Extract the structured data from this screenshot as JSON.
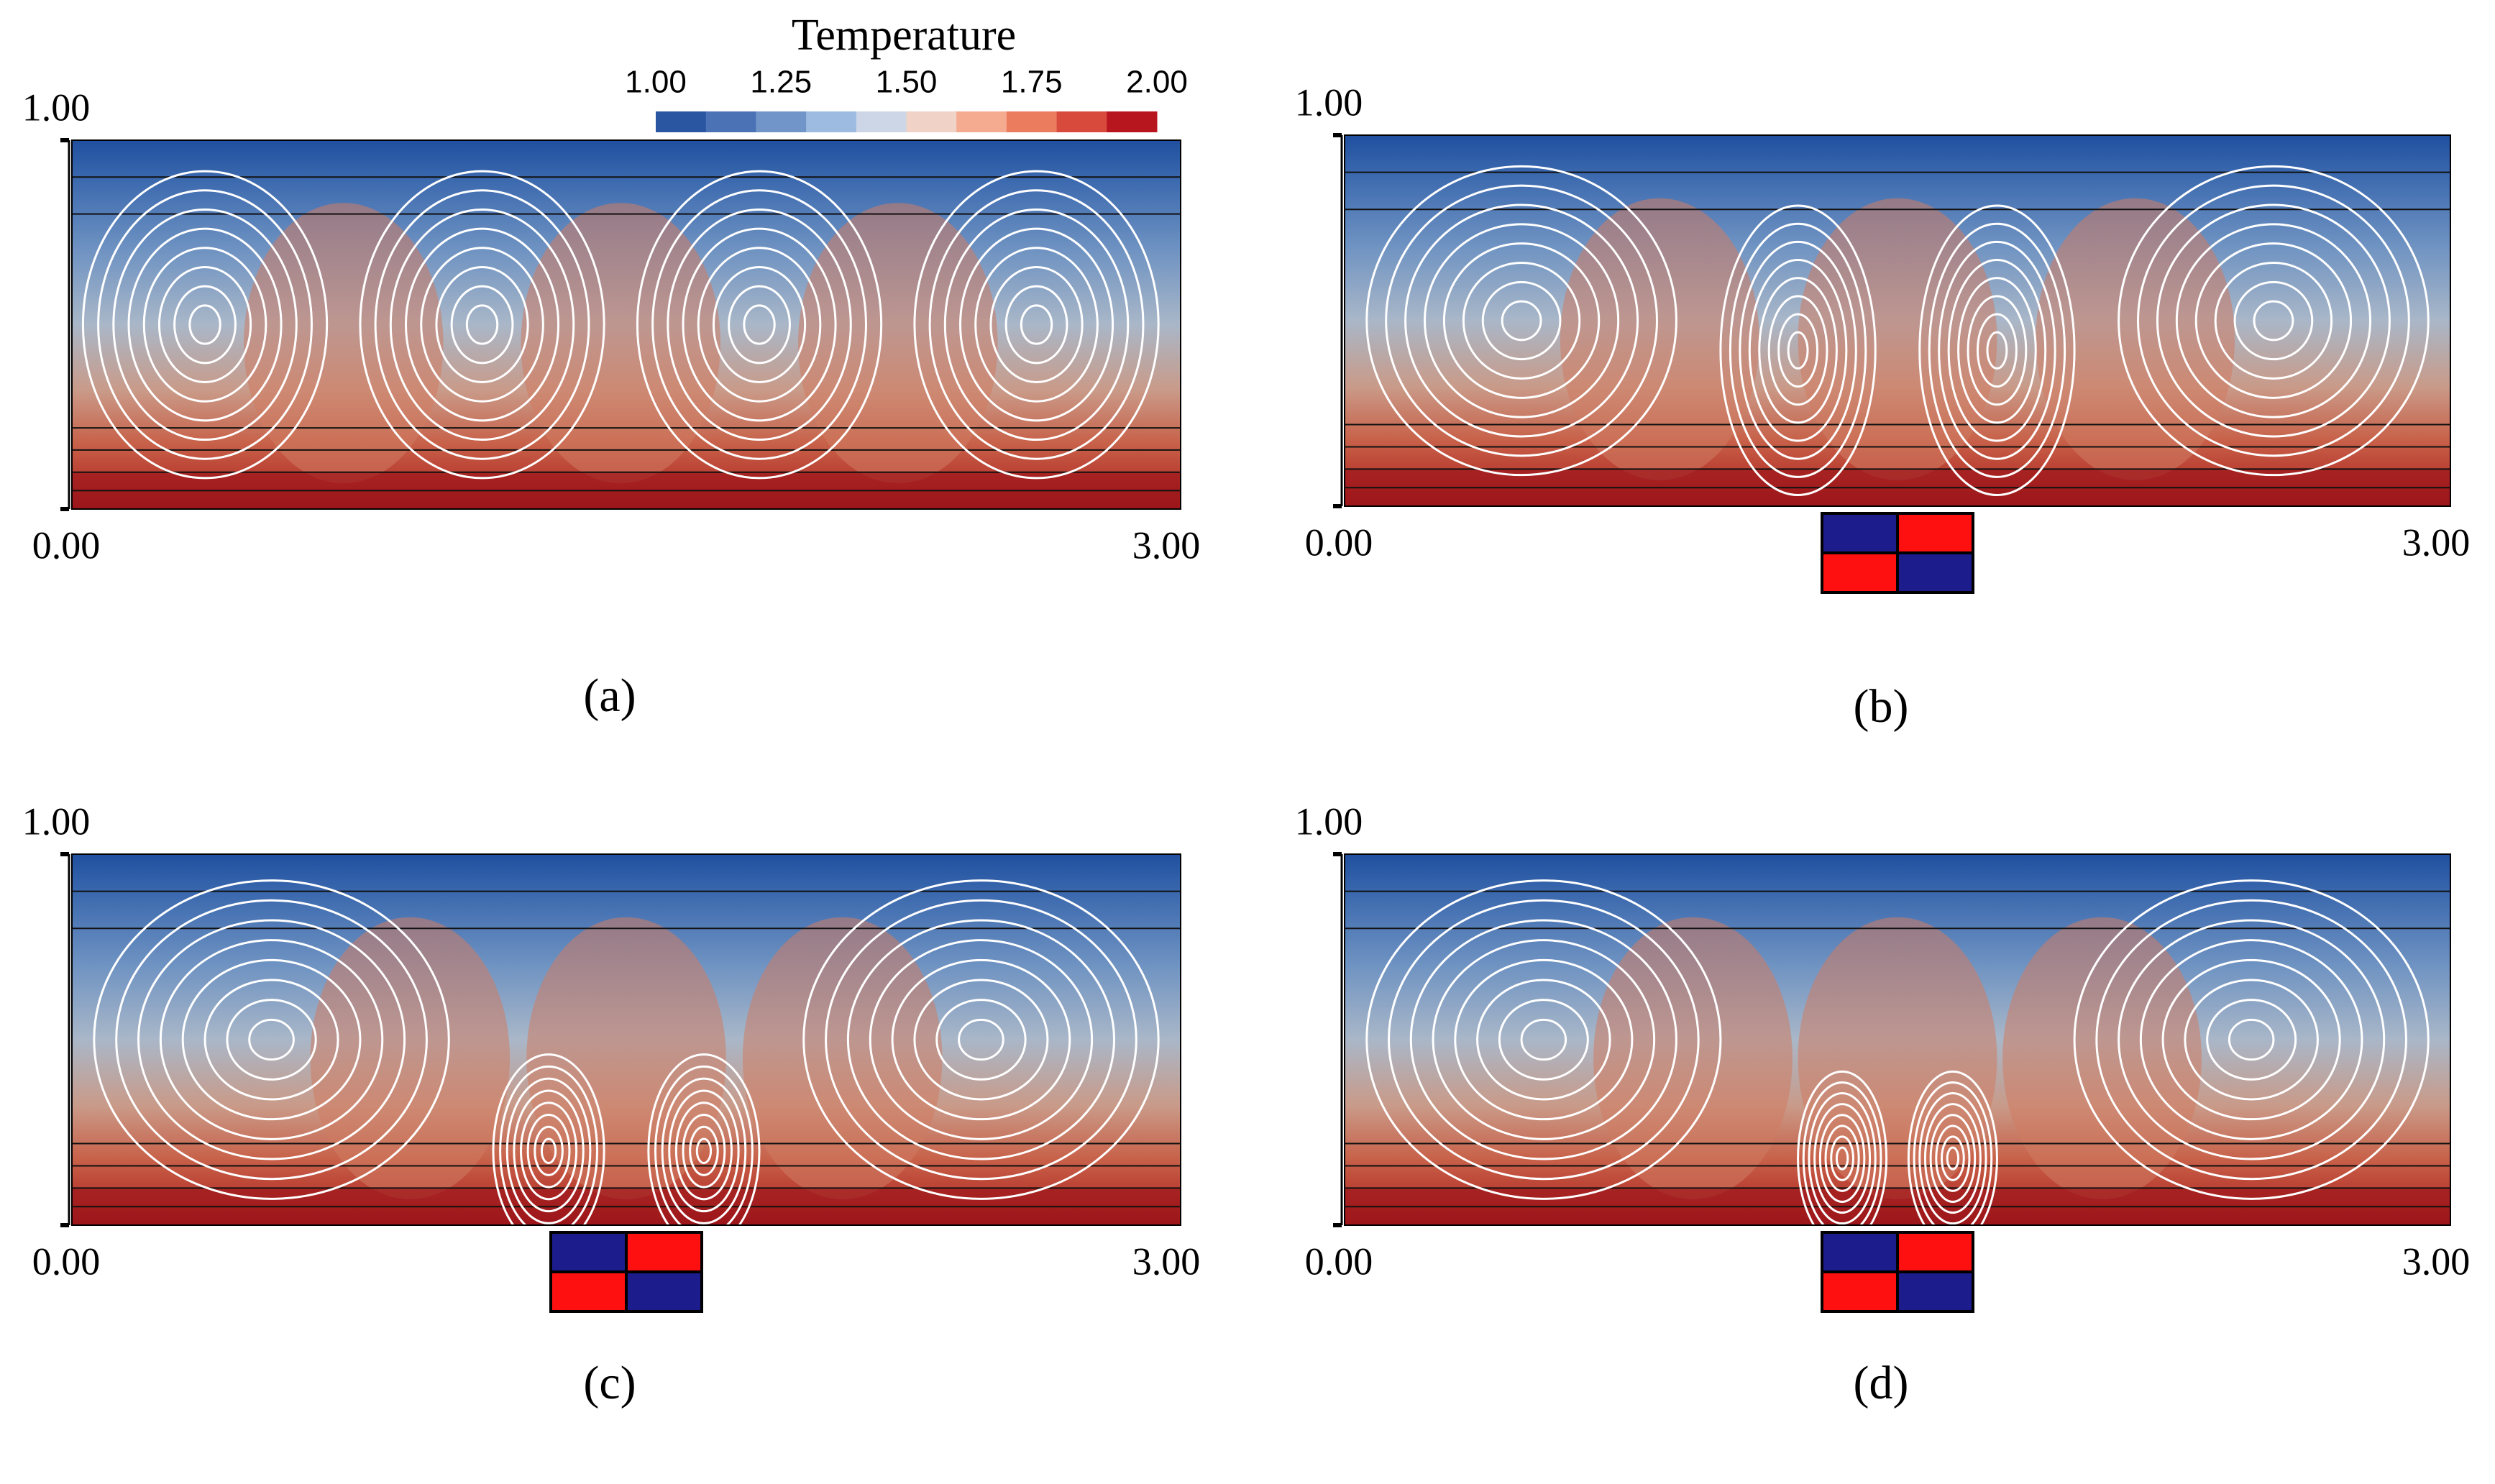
{
  "colorbar": {
    "title": "Temperature",
    "ticks": [
      "1.00",
      "1.25",
      "1.50",
      "1.75",
      "2.00"
    ]
  },
  "panels": [
    {
      "y_max": "1.00",
      "x_min": "0.00",
      "x_max": "3.00",
      "caption": "(a)"
    },
    {
      "y_max": "1.00",
      "x_min": "0.00",
      "x_max": "3.00",
      "caption": "(b)"
    },
    {
      "y_max": "1.00",
      "x_min": "0.00",
      "x_max": "3.00",
      "caption": "(c)"
    },
    {
      "y_max": "1.00",
      "x_min": "0.00",
      "x_max": "3.00",
      "caption": "(d)"
    }
  ]
}
